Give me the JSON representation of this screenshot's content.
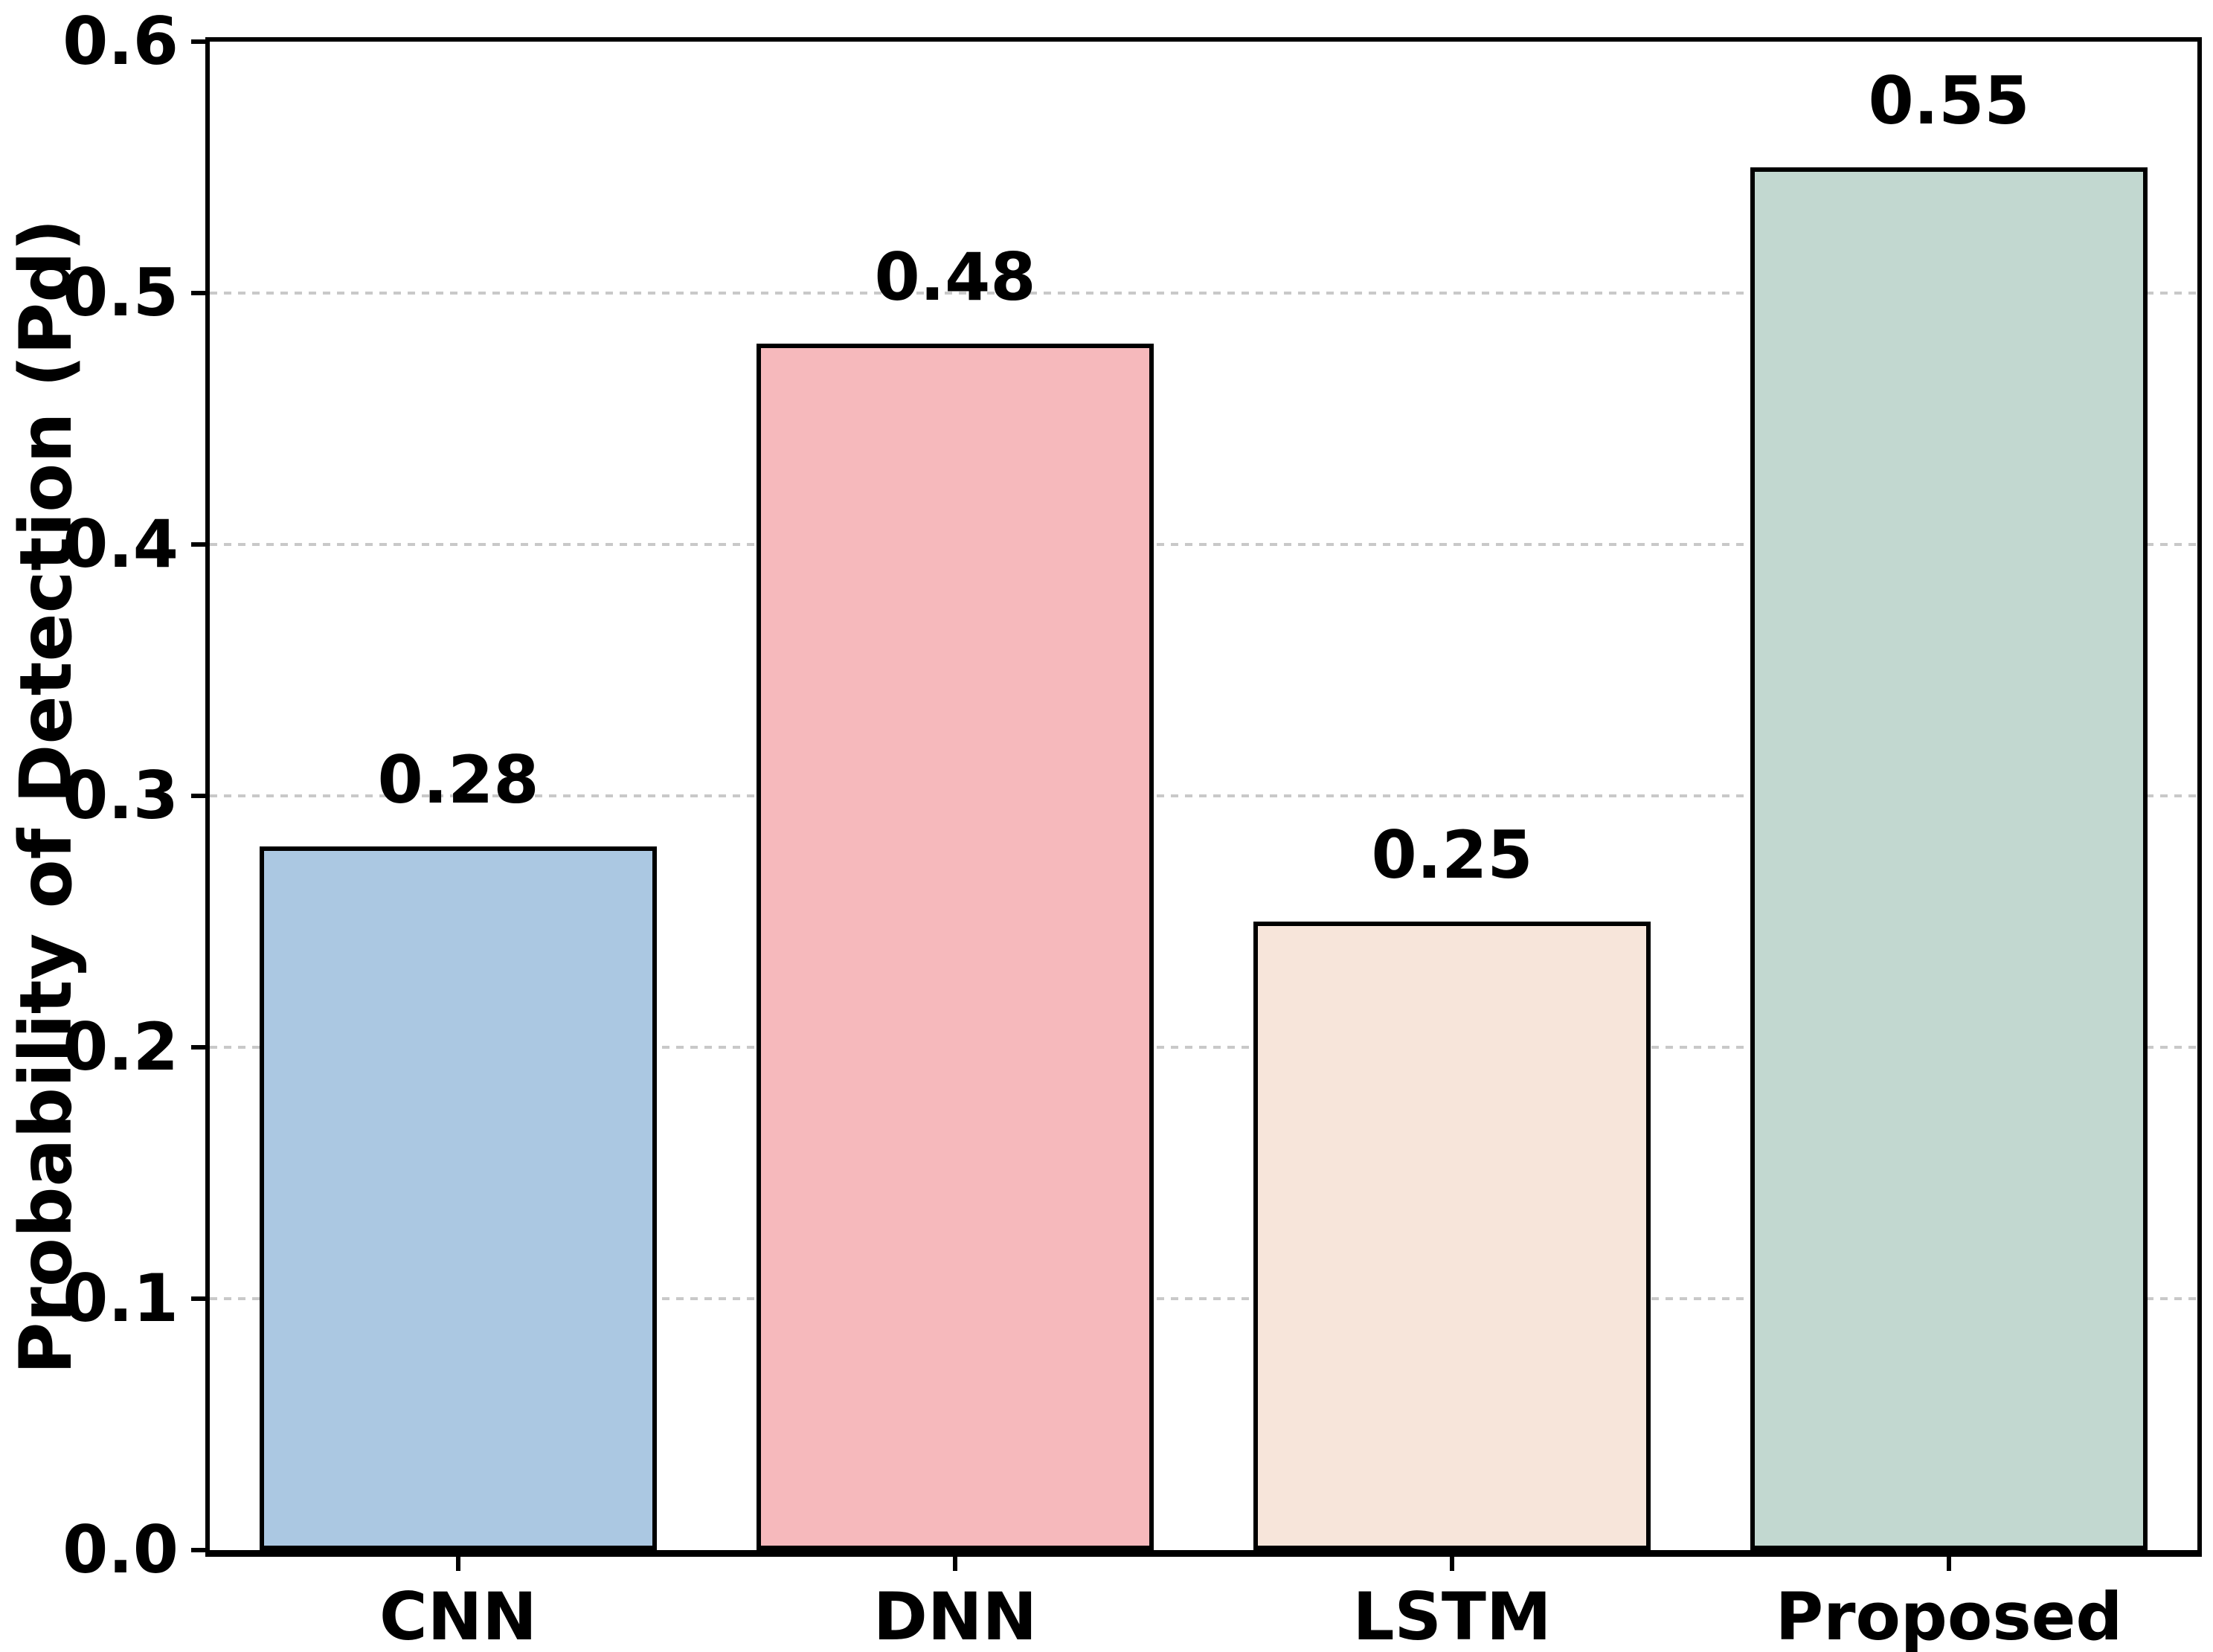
{
  "chart_data": {
    "type": "bar",
    "title": "",
    "xlabel": "",
    "ylabel": "Probability of Detection (Pd)",
    "categories": [
      "CNN",
      "DNN",
      "LSTM",
      "Proposed"
    ],
    "values": [
      0.28,
      0.48,
      0.25,
      0.55
    ],
    "value_labels": [
      "0.28",
      "0.48",
      "0.25",
      "0.55"
    ],
    "bar_colors": [
      "#abc8e2",
      "#f6b9bc",
      "#f7e5da",
      "#c2d8d0"
    ],
    "bar_edge_color": "#000000",
    "bar_width_fraction": 0.8,
    "ylim": [
      0.0,
      0.6
    ],
    "yticks": [
      "0.0",
      "0.1",
      "0.2",
      "0.3",
      "0.4",
      "0.5",
      "0.6"
    ],
    "grid": "horizontal-dashed",
    "gridline_color": "#c9c9c9",
    "spine_color": "#000000",
    "legend": "none",
    "background_color": "#ffffff"
  }
}
